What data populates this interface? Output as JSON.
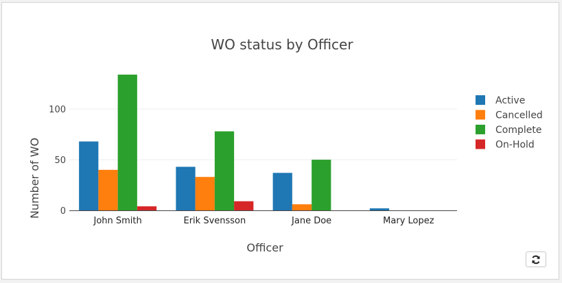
{
  "chart_data": {
    "type": "bar",
    "title": "WO status by Officer",
    "xlabel": "Officer",
    "ylabel": "Number of WO",
    "categories": [
      "John Smith",
      "Erik Svensson",
      "Jane Doe",
      "Mary Lopez"
    ],
    "series": [
      {
        "name": "Active",
        "values": [
          68,
          43,
          37,
          2
        ],
        "color": "#1f77b4"
      },
      {
        "name": "Cancelled",
        "values": [
          40,
          33,
          6,
          0
        ],
        "color": "#ff7f0e"
      },
      {
        "name": "Complete",
        "values": [
          134,
          78,
          50,
          0
        ],
        "color": "#2ca02c"
      },
      {
        "name": "On-Hold",
        "values": [
          4,
          9,
          0,
          0
        ],
        "color": "#d62728"
      }
    ],
    "ylim": [
      0,
      140
    ],
    "yticks": [
      0,
      50,
      100
    ],
    "grid": true,
    "legend_position": "right"
  },
  "controls": {
    "refresh_icon": "refresh-icon"
  }
}
